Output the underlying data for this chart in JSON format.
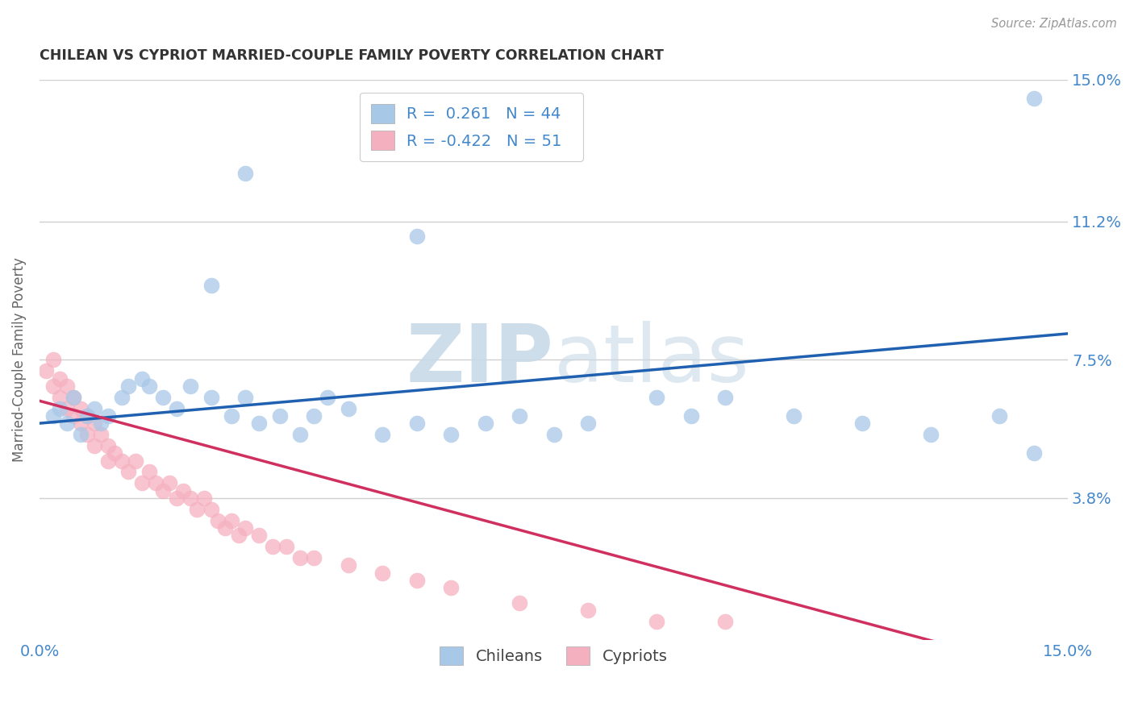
{
  "title": "CHILEAN VS CYPRIOT MARRIED-COUPLE FAMILY POVERTY CORRELATION CHART",
  "source": "Source: ZipAtlas.com",
  "ylabel": "Married-Couple Family Poverty",
  "xlim": [
    0.0,
    0.15
  ],
  "ylim": [
    0.0,
    0.15
  ],
  "chilean_R": 0.261,
  "chilean_N": 44,
  "cypriot_R": -0.422,
  "cypriot_N": 51,
  "chilean_color": "#a8c8e8",
  "cypriot_color": "#f5b0c0",
  "chilean_line_color": "#2060b0",
  "cypriot_line_color": "#d03060",
  "watermark_color": "#dce8f0",
  "grid_color": "#d0d0d0",
  "background_color": "#ffffff",
  "label_color": "#4488cc",
  "title_color": "#333333",
  "ytick_positions": [
    0.038,
    0.075,
    0.112,
    0.15
  ],
  "ytick_labels": [
    "3.8%",
    "7.5%",
    "11.2%",
    "15.0%"
  ],
  "chilean_x": [
    0.002,
    0.003,
    0.004,
    0.005,
    0.006,
    0.007,
    0.008,
    0.009,
    0.01,
    0.012,
    0.013,
    0.015,
    0.016,
    0.018,
    0.02,
    0.022,
    0.025,
    0.028,
    0.03,
    0.032,
    0.035,
    0.038,
    0.04,
    0.042,
    0.045,
    0.05,
    0.055,
    0.06,
    0.065,
    0.07,
    0.075,
    0.08,
    0.09,
    0.095,
    0.1,
    0.11,
    0.12,
    0.13,
    0.14,
    0.145,
    0.145,
    0.055,
    0.03,
    0.025
  ],
  "chilean_y": [
    0.06,
    0.062,
    0.058,
    0.065,
    0.055,
    0.06,
    0.062,
    0.058,
    0.06,
    0.065,
    0.068,
    0.07,
    0.068,
    0.065,
    0.062,
    0.068,
    0.065,
    0.06,
    0.065,
    0.058,
    0.06,
    0.055,
    0.06,
    0.065,
    0.062,
    0.055,
    0.058,
    0.055,
    0.058,
    0.06,
    0.055,
    0.058,
    0.065,
    0.06,
    0.065,
    0.06,
    0.058,
    0.055,
    0.06,
    0.05,
    0.145,
    0.108,
    0.125,
    0.095
  ],
  "cypriot_x": [
    0.001,
    0.002,
    0.002,
    0.003,
    0.003,
    0.004,
    0.004,
    0.005,
    0.005,
    0.006,
    0.006,
    0.007,
    0.007,
    0.008,
    0.008,
    0.009,
    0.01,
    0.01,
    0.011,
    0.012,
    0.013,
    0.014,
    0.015,
    0.016,
    0.017,
    0.018,
    0.019,
    0.02,
    0.021,
    0.022,
    0.023,
    0.024,
    0.025,
    0.026,
    0.027,
    0.028,
    0.029,
    0.03,
    0.032,
    0.034,
    0.036,
    0.038,
    0.04,
    0.045,
    0.05,
    0.055,
    0.06,
    0.07,
    0.08,
    0.09,
    0.1
  ],
  "cypriot_y": [
    0.072,
    0.068,
    0.075,
    0.065,
    0.07,
    0.068,
    0.062,
    0.065,
    0.06,
    0.062,
    0.058,
    0.06,
    0.055,
    0.058,
    0.052,
    0.055,
    0.052,
    0.048,
    0.05,
    0.048,
    0.045,
    0.048,
    0.042,
    0.045,
    0.042,
    0.04,
    0.042,
    0.038,
    0.04,
    0.038,
    0.035,
    0.038,
    0.035,
    0.032,
    0.03,
    0.032,
    0.028,
    0.03,
    0.028,
    0.025,
    0.025,
    0.022,
    0.022,
    0.02,
    0.018,
    0.016,
    0.014,
    0.01,
    0.008,
    0.005,
    0.005
  ]
}
